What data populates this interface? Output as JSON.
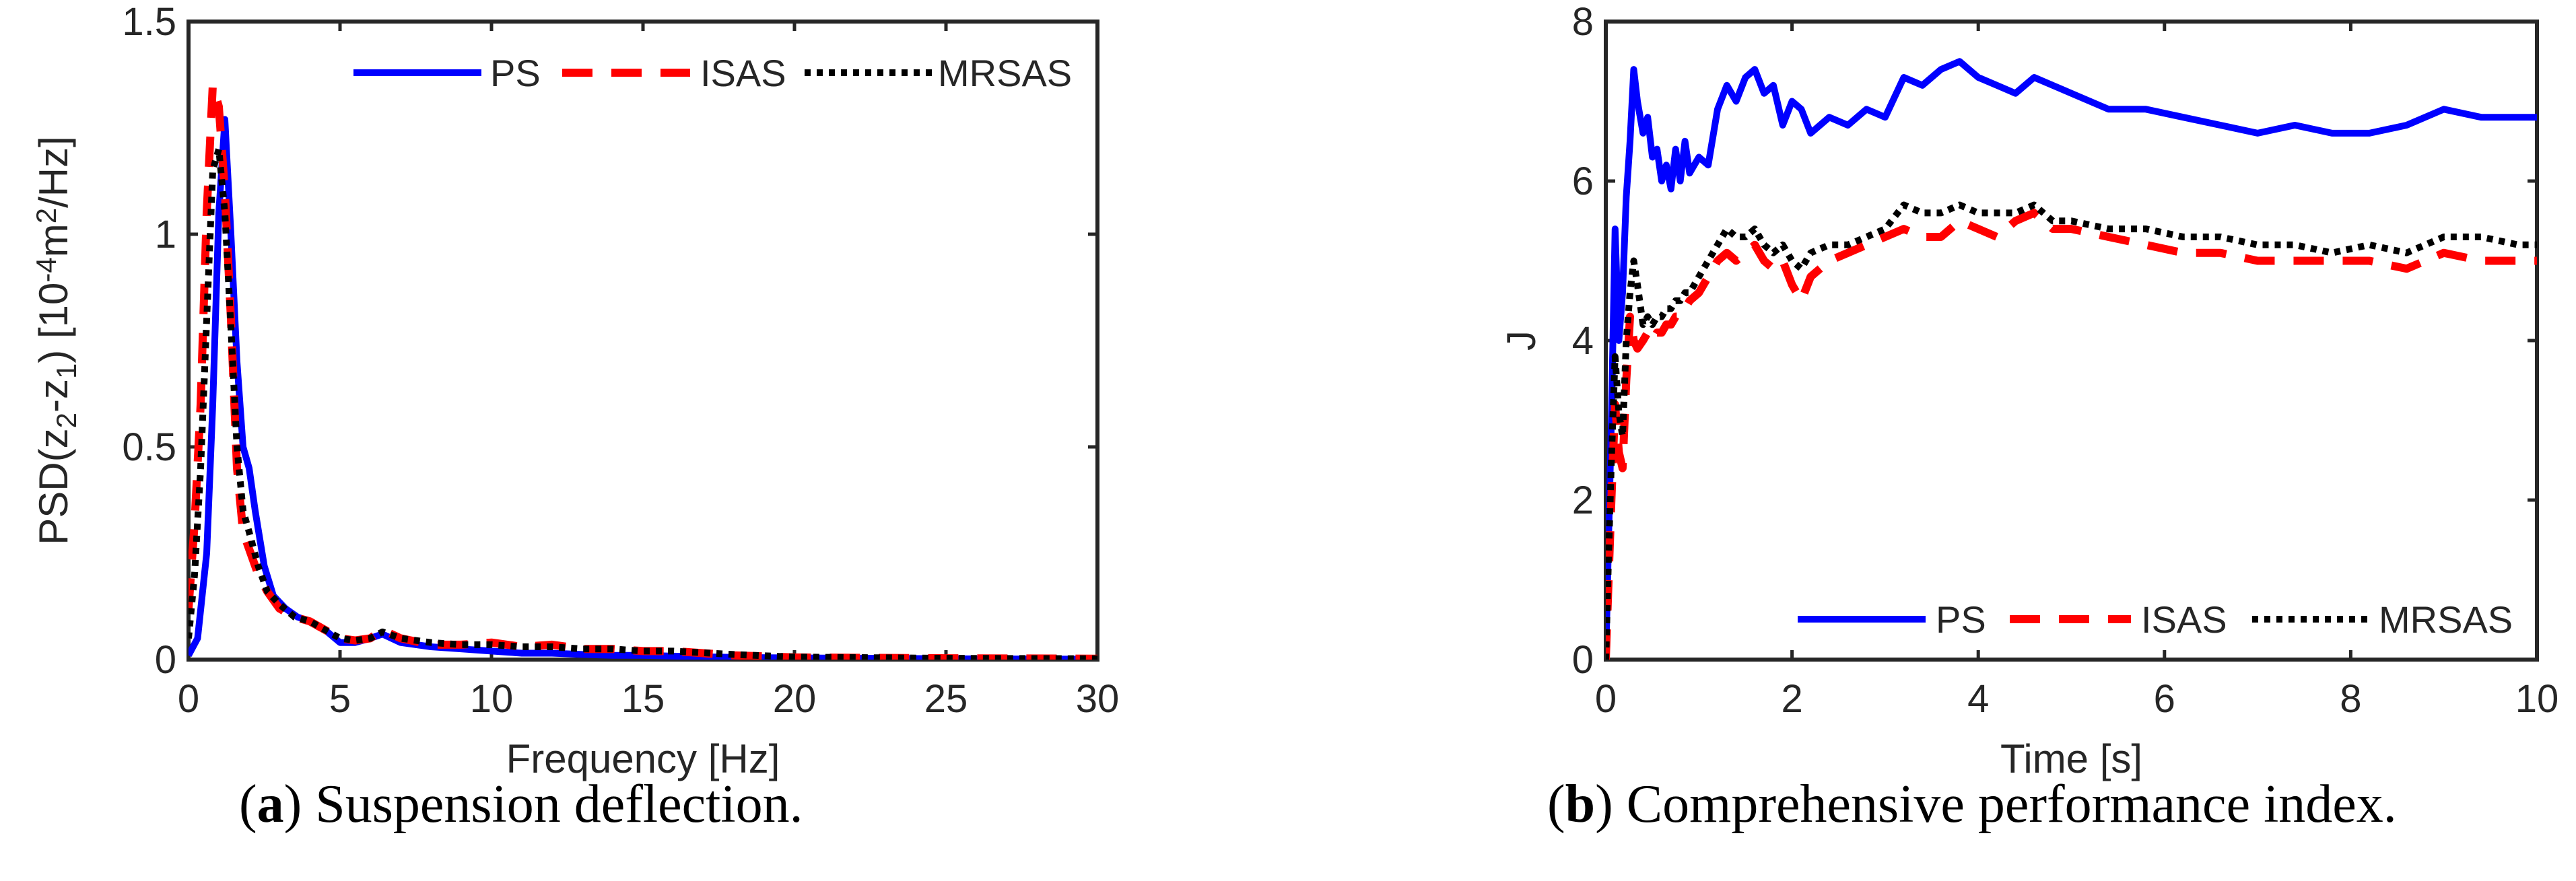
{
  "captions": [
    {
      "letter": "a",
      "text": " Suspension deflection."
    },
    {
      "letter": "b",
      "text": " Comprehensive performance index."
    }
  ],
  "colors": {
    "PS": "#0000ff",
    "ISAS": "#ff0000",
    "MRSAS": "#000000"
  },
  "chart_data": [
    {
      "type": "line",
      "title": "",
      "xlabel": "Frequency [Hz]",
      "ylabel_parts": [
        "PSD(z",
        "2",
        "-z",
        "1",
        ") [10",
        "-4",
        "m",
        "2",
        "/Hz]"
      ],
      "xlim": [
        0,
        30
      ],
      "ylim": [
        0,
        1.5
      ],
      "xticks": [
        0,
        5,
        10,
        15,
        20,
        25,
        30
      ],
      "xtick_labels": [
        "0",
        "5",
        "10",
        "15",
        "20",
        "25",
        "30"
      ],
      "yticks": [
        0,
        0.5,
        1,
        1.5
      ],
      "ytick_labels": [
        "0",
        "0.5",
        "1",
        "1.5"
      ],
      "grid": false,
      "legend": {
        "placement": "top-right",
        "orientation": "horizontal",
        "labels": [
          "PS",
          "ISAS",
          "MRSAS"
        ]
      },
      "series": [
        {
          "name": "PS",
          "x": [
            0,
            0.3,
            0.6,
            0.8,
            1.0,
            1.2,
            1.4,
            1.6,
            1.8,
            2.0,
            2.2,
            2.5,
            2.8,
            3.2,
            3.6,
            4.0,
            4.5,
            5.0,
            5.5,
            6.0,
            6.4,
            7.0,
            8.0,
            9.0,
            10.0,
            11.0,
            12.0,
            13.0,
            14.0,
            15.0,
            16.0,
            18.0,
            20.0,
            25.0,
            30.0
          ],
          "y": [
            0.01,
            0.05,
            0.25,
            0.6,
            1.05,
            1.27,
            1.0,
            0.7,
            0.5,
            0.45,
            0.35,
            0.22,
            0.15,
            0.12,
            0.1,
            0.09,
            0.07,
            0.04,
            0.04,
            0.05,
            0.06,
            0.04,
            0.03,
            0.025,
            0.02,
            0.015,
            0.015,
            0.012,
            0.01,
            0.01,
            0.008,
            0.005,
            0.004,
            0.002,
            0.001
          ]
        },
        {
          "name": "ISAS",
          "x": [
            0,
            0.2,
            0.4,
            0.6,
            0.8,
            1.0,
            1.2,
            1.4,
            1.6,
            1.8,
            2.0,
            2.3,
            2.6,
            3.0,
            3.5,
            4.0,
            4.5,
            5.0,
            5.5,
            6.0,
            6.4,
            7.0,
            8.0,
            9.0,
            10.0,
            11.0,
            12.0,
            13.0,
            14.0,
            15.0,
            16.0,
            18.0,
            20.0,
            25.0,
            30.0
          ],
          "y": [
            0.12,
            0.32,
            0.6,
            1.05,
            1.35,
            1.3,
            1.1,
            0.8,
            0.45,
            0.3,
            0.26,
            0.2,
            0.16,
            0.12,
            0.1,
            0.09,
            0.07,
            0.05,
            0.045,
            0.05,
            0.07,
            0.05,
            0.035,
            0.035,
            0.04,
            0.03,
            0.035,
            0.025,
            0.025,
            0.02,
            0.02,
            0.01,
            0.005,
            0.003,
            0.002
          ]
        },
        {
          "name": "MRSAS",
          "x": [
            0,
            0.2,
            0.4,
            0.6,
            0.8,
            1.0,
            1.2,
            1.4,
            1.6,
            1.8,
            2.0,
            2.3,
            2.6,
            3.0,
            3.5,
            4.0,
            4.5,
            5.0,
            5.5,
            6.0,
            6.4,
            7.0,
            8.0,
            9.0,
            10.0,
            11.0,
            12.0,
            13.0,
            14.0,
            15.0,
            16.0,
            18.0,
            20.0,
            25.0,
            30.0
          ],
          "y": [
            0.05,
            0.2,
            0.45,
            0.8,
            1.15,
            1.2,
            1.05,
            0.78,
            0.5,
            0.35,
            0.3,
            0.22,
            0.16,
            0.13,
            0.1,
            0.09,
            0.07,
            0.05,
            0.045,
            0.05,
            0.065,
            0.05,
            0.04,
            0.035,
            0.035,
            0.03,
            0.03,
            0.025,
            0.025,
            0.02,
            0.02,
            0.012,
            0.006,
            0.003,
            0.002
          ]
        }
      ]
    },
    {
      "type": "line",
      "title": "",
      "xlabel": "Time [s]",
      "ylabel": "J",
      "xlim": [
        0,
        10
      ],
      "ylim": [
        0,
        8
      ],
      "xticks": [
        0,
        2,
        4,
        6,
        8,
        10
      ],
      "xtick_labels": [
        "0",
        "2",
        "4",
        "6",
        "8",
        "10"
      ],
      "yticks": [
        0,
        2,
        4,
        6,
        8
      ],
      "ytick_labels": [
        "0",
        "2",
        "4",
        "6",
        "8"
      ],
      "grid": false,
      "legend": {
        "placement": "bottom-right",
        "orientation": "horizontal",
        "labels": [
          "PS",
          "ISAS",
          "MRSAS"
        ]
      },
      "series": [
        {
          "name": "PS",
          "x": [
            0,
            0.03,
            0.06,
            0.1,
            0.14,
            0.18,
            0.22,
            0.26,
            0.3,
            0.34,
            0.4,
            0.45,
            0.5,
            0.55,
            0.6,
            0.65,
            0.7,
            0.75,
            0.8,
            0.85,
            0.9,
            1.0,
            1.1,
            1.2,
            1.3,
            1.4,
            1.5,
            1.6,
            1.7,
            1.8,
            1.9,
            2.0,
            2.1,
            2.2,
            2.4,
            2.6,
            2.8,
            3.0,
            3.2,
            3.4,
            3.6,
            3.8,
            4.0,
            4.2,
            4.4,
            4.6,
            4.8,
            5.0,
            5.4,
            5.8,
            6.2,
            6.6,
            7.0,
            7.4,
            7.8,
            8.2,
            8.6,
            9.0,
            9.4,
            9.8,
            10.0
          ],
          "y": [
            0,
            1.5,
            3.0,
            5.4,
            4.0,
            4.6,
            5.8,
            6.5,
            7.4,
            7.0,
            6.6,
            6.8,
            6.3,
            6.4,
            6.0,
            6.2,
            5.9,
            6.4,
            6.0,
            6.5,
            6.1,
            6.3,
            6.2,
            6.9,
            7.2,
            7.0,
            7.3,
            7.4,
            7.1,
            7.2,
            6.7,
            7.0,
            6.9,
            6.6,
            6.8,
            6.7,
            6.9,
            6.8,
            7.3,
            7.2,
            7.4,
            7.5,
            7.3,
            7.2,
            7.1,
            7.3,
            7.2,
            7.1,
            6.9,
            6.9,
            6.8,
            6.7,
            6.6,
            6.7,
            6.6,
            6.6,
            6.7,
            6.9,
            6.8,
            6.8,
            6.8
          ]
        },
        {
          "name": "ISAS",
          "x": [
            0,
            0.03,
            0.06,
            0.1,
            0.14,
            0.18,
            0.22,
            0.26,
            0.3,
            0.34,
            0.4,
            0.45,
            0.5,
            0.55,
            0.6,
            0.65,
            0.7,
            0.75,
            0.8,
            0.85,
            0.9,
            1.0,
            1.1,
            1.2,
            1.3,
            1.4,
            1.5,
            1.6,
            1.7,
            1.8,
            1.9,
            2.0,
            2.1,
            2.2,
            2.4,
            2.6,
            2.8,
            3.0,
            3.2,
            3.4,
            3.6,
            3.8,
            4.0,
            4.2,
            4.4,
            4.6,
            4.8,
            5.0,
            5.4,
            5.8,
            6.2,
            6.6,
            7.0,
            7.4,
            7.8,
            8.2,
            8.6,
            9.0,
            9.4,
            9.8,
            10.0
          ],
          "y": [
            0,
            1.0,
            2.0,
            3.2,
            2.6,
            2.4,
            3.5,
            4.3,
            4.0,
            3.9,
            4.0,
            4.1,
            4.0,
            4.1,
            4.1,
            4.2,
            4.2,
            4.3,
            4.3,
            4.4,
            4.5,
            4.6,
            4.8,
            5.0,
            5.1,
            5.0,
            5.1,
            5.2,
            5.0,
            4.9,
            5.0,
            4.7,
            4.5,
            4.8,
            5.0,
            5.1,
            5.2,
            5.3,
            5.4,
            5.3,
            5.3,
            5.5,
            5.4,
            5.3,
            5.5,
            5.6,
            5.4,
            5.4,
            5.3,
            5.2,
            5.1,
            5.1,
            5.0,
            5.0,
            5.0,
            5.0,
            4.9,
            5.1,
            5.0,
            5.0,
            5.0
          ]
        },
        {
          "name": "MRSAS",
          "x": [
            0,
            0.03,
            0.06,
            0.1,
            0.14,
            0.18,
            0.22,
            0.26,
            0.3,
            0.34,
            0.4,
            0.45,
            0.5,
            0.55,
            0.6,
            0.65,
            0.7,
            0.75,
            0.8,
            0.85,
            0.9,
            1.0,
            1.1,
            1.2,
            1.3,
            1.4,
            1.5,
            1.6,
            1.7,
            1.8,
            1.9,
            2.0,
            2.1,
            2.2,
            2.4,
            2.6,
            2.8,
            3.0,
            3.2,
            3.4,
            3.6,
            3.8,
            4.0,
            4.2,
            4.4,
            4.6,
            4.8,
            5.0,
            5.4,
            5.8,
            6.2,
            6.6,
            7.0,
            7.4,
            7.8,
            8.2,
            8.6,
            9.0,
            9.4,
            9.8,
            10.0
          ],
          "y": [
            0,
            1.3,
            2.5,
            3.8,
            3.1,
            2.8,
            4.0,
            4.6,
            5.0,
            4.7,
            4.2,
            4.3,
            4.2,
            4.3,
            4.3,
            4.4,
            4.4,
            4.5,
            4.5,
            4.6,
            4.6,
            4.8,
            5.0,
            5.2,
            5.4,
            5.3,
            5.3,
            5.4,
            5.2,
            5.1,
            5.2,
            5.0,
            4.9,
            5.1,
            5.2,
            5.2,
            5.3,
            5.4,
            5.7,
            5.6,
            5.6,
            5.7,
            5.6,
            5.6,
            5.6,
            5.7,
            5.5,
            5.5,
            5.4,
            5.4,
            5.3,
            5.3,
            5.2,
            5.2,
            5.1,
            5.2,
            5.1,
            5.3,
            5.3,
            5.2,
            5.2
          ]
        }
      ]
    }
  ]
}
